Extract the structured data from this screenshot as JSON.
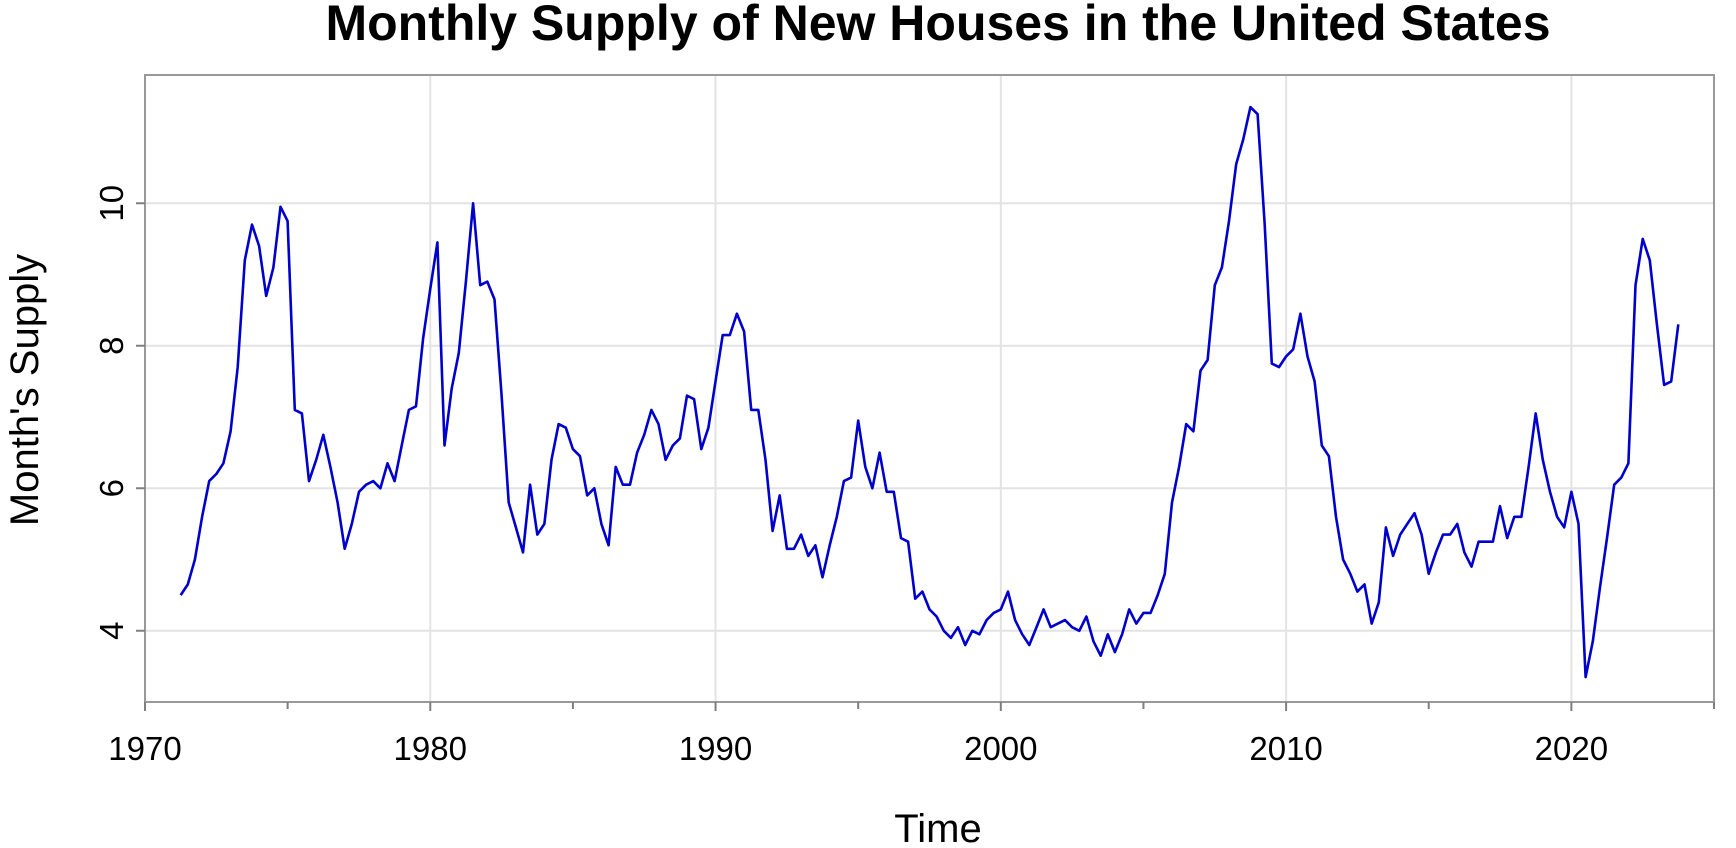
{
  "chart_data": {
    "type": "line",
    "title": "Monthly Supply of New Houses in the United States",
    "xlabel": "Time",
    "ylabel": "Month's Supply",
    "xlim": [
      1970,
      2025
    ],
    "ylim": [
      3.0,
      11.8
    ],
    "x_ticks": [
      1970,
      1980,
      1990,
      2000,
      2010,
      2020
    ],
    "x_minor_ticks": [
      1975,
      1985,
      1995,
      2005,
      2015,
      2025
    ],
    "y_ticks": [
      4,
      6,
      8,
      10
    ],
    "grid": true,
    "legend": "none",
    "colors": {
      "series": "#0000cc",
      "frame": "#999999",
      "grid": "#e3e3e3"
    },
    "series": [
      {
        "x": [
          1971.25,
          1971.5,
          1971.75,
          1972,
          1972.25,
          1972.5,
          1972.75,
          1973,
          1973.25,
          1973.5,
          1973.75,
          1974,
          1974.25,
          1974.5,
          1974.75,
          1975,
          1975.25,
          1975.5,
          1975.75,
          1976,
          1976.25,
          1976.5,
          1976.75,
          1977,
          1977.25,
          1977.5,
          1977.75,
          1978,
          1978.25,
          1978.5,
          1978.75,
          1979,
          1979.25,
          1979.5,
          1979.75,
          1980,
          1980.25,
          1980.5,
          1980.75,
          1981,
          1981.25,
          1981.5,
          1981.75,
          1982,
          1982.25,
          1982.5,
          1982.75,
          1983,
          1983.25,
          1983.5,
          1983.75,
          1984,
          1984.25,
          1984.5,
          1984.75,
          1985,
          1985.25,
          1985.5,
          1985.75,
          1986,
          1986.25,
          1986.5,
          1986.75,
          1987,
          1987.25,
          1987.5,
          1987.75,
          1988,
          1988.25,
          1988.5,
          1988.75,
          1989,
          1989.25,
          1989.5,
          1989.75,
          1990,
          1990.25,
          1990.5,
          1990.75,
          1991,
          1991.25,
          1991.5,
          1991.75,
          1992,
          1992.25,
          1992.5,
          1992.75,
          1993,
          1993.25,
          1993.5,
          1993.75,
          1994,
          1994.25,
          1994.5,
          1994.75,
          1995,
          1995.25,
          1995.5,
          1995.75,
          1996,
          1996.25,
          1996.5,
          1996.75,
          1997,
          1997.25,
          1997.5,
          1997.75,
          1998,
          1998.25,
          1998.5,
          1998.75,
          1999,
          1999.25,
          1999.5,
          1999.75,
          2000,
          2000.25,
          2000.5,
          2000.75,
          2001,
          2001.25,
          2001.5,
          2001.75,
          2002,
          2002.25,
          2002.5,
          2002.75,
          2003,
          2003.25,
          2003.5,
          2003.75,
          2004,
          2004.25,
          2004.5,
          2004.75,
          2005,
          2005.25,
          2005.5,
          2005.75,
          2006,
          2006.25,
          2006.5,
          2006.75,
          2007,
          2007.25,
          2007.5,
          2007.75,
          2008,
          2008.25,
          2008.5,
          2008.75,
          2009,
          2009.25,
          2009.5,
          2009.75,
          2010,
          2010.25,
          2010.5,
          2010.75,
          2011,
          2011.25,
          2011.5,
          2011.75,
          2012,
          2012.25,
          2012.5,
          2012.75,
          2013,
          2013.25,
          2013.5,
          2013.75,
          2014,
          2014.25,
          2014.5,
          2014.75,
          2015,
          2015.25,
          2015.5,
          2015.75,
          2016,
          2016.25,
          2016.5,
          2016.75,
          2017,
          2017.25,
          2017.5,
          2017.75,
          2018,
          2018.25,
          2018.5,
          2018.75,
          2019,
          2019.25,
          2019.5,
          2019.75,
          2020,
          2020.25,
          2020.5,
          2020.75,
          2021,
          2021.25,
          2021.5,
          2021.75,
          2022,
          2022.25,
          2022.5,
          2022.75,
          2023,
          2023.25,
          2023.5,
          2023.75
        ],
        "values": [
          4.5,
          4.65,
          5.0,
          5.6,
          6.1,
          6.2,
          6.35,
          6.8,
          7.7,
          9.2,
          9.7,
          9.4,
          8.7,
          9.1,
          9.95,
          9.75,
          7.1,
          7.05,
          6.1,
          6.4,
          6.75,
          6.3,
          5.8,
          5.15,
          5.5,
          5.95,
          6.05,
          6.1,
          6.0,
          6.35,
          6.1,
          6.6,
          7.1,
          7.15,
          8.1,
          8.8,
          9.45,
          6.6,
          7.4,
          7.9,
          8.9,
          10.0,
          8.85,
          8.9,
          8.65,
          7.3,
          5.8,
          5.45,
          5.1,
          6.05,
          5.35,
          5.5,
          6.4,
          6.9,
          6.85,
          6.55,
          6.45,
          5.9,
          6.0,
          5.5,
          5.2,
          6.3,
          6.05,
          6.05,
          6.5,
          6.75,
          7.1,
          6.9,
          6.4,
          6.6,
          6.7,
          7.3,
          7.25,
          6.55,
          6.85,
          7.5,
          8.15,
          8.15,
          8.45,
          8.2,
          7.1,
          7.1,
          6.4,
          5.4,
          5.9,
          5.15,
          5.15,
          5.35,
          5.05,
          5.2,
          4.75,
          5.2,
          5.6,
          6.1,
          6.15,
          6.95,
          6.3,
          6.0,
          6.5,
          5.95,
          5.95,
          5.3,
          5.25,
          4.45,
          4.55,
          4.3,
          4.2,
          4.0,
          3.9,
          4.05,
          3.8,
          4.0,
          3.95,
          4.15,
          4.25,
          4.3,
          4.55,
          4.15,
          3.95,
          3.8,
          4.05,
          4.3,
          4.05,
          4.1,
          4.15,
          4.05,
          4.0,
          4.2,
          3.85,
          3.65,
          3.95,
          3.7,
          3.95,
          4.3,
          4.1,
          4.25,
          4.25,
          4.5,
          4.8,
          5.8,
          6.3,
          6.9,
          6.8,
          7.65,
          7.8,
          8.85,
          9.1,
          9.75,
          10.55,
          10.9,
          11.35,
          11.25,
          9.7,
          7.75,
          7.7,
          7.85,
          7.95,
          8.45,
          7.85,
          7.5,
          6.6,
          6.45,
          5.6,
          5.0,
          4.8,
          4.55,
          4.65,
          4.1,
          4.4,
          5.45,
          5.05,
          5.35,
          5.5,
          5.65,
          5.35,
          4.8,
          5.1,
          5.35,
          5.35,
          5.5,
          5.1,
          4.9,
          5.25,
          5.25,
          5.25,
          5.75,
          5.3,
          5.6,
          5.6,
          6.3,
          7.05,
          6.4,
          5.95,
          5.6,
          5.45,
          5.95,
          5.5,
          3.35,
          3.85,
          4.6,
          5.3,
          6.05,
          6.15,
          6.35,
          8.85,
          9.5,
          9.2,
          8.3,
          7.45,
          7.5,
          8.3
        ]
      }
    ]
  }
}
